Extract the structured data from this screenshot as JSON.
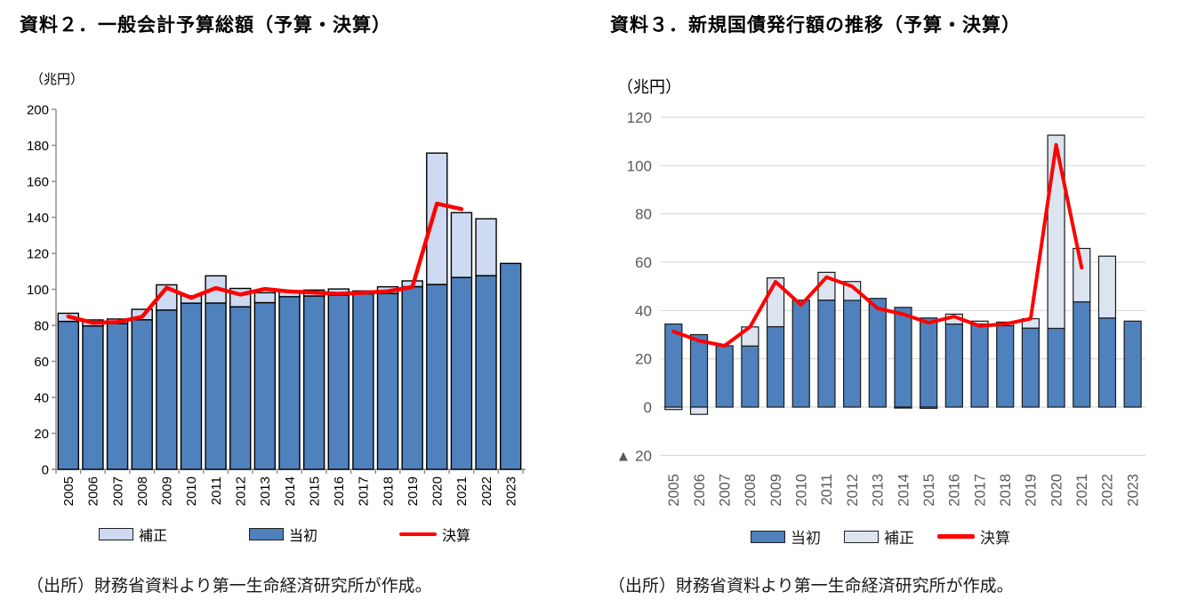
{
  "panels": [
    {
      "title": "資料２．一般会計予算総額（予算・決算）",
      "unit": "（兆円）",
      "source": "（出所）財務省資料より第一生命経済研究所が作成。",
      "legend": [
        {
          "label": "補正",
          "swatch": "light"
        },
        {
          "label": "当初",
          "swatch": "dark"
        },
        {
          "label": "決算",
          "swatch": "line"
        }
      ]
    },
    {
      "title": "資料３．新規国債発行額の推移（予算・決算）",
      "unit": "（兆円）",
      "source": "（出所）財務省資料より第一生命経済研究所が作成。",
      "legend": [
        {
          "label": "当初",
          "swatch": "dark"
        },
        {
          "label": "補正",
          "swatch": "light"
        },
        {
          "label": "決算",
          "swatch": "line"
        }
      ]
    }
  ],
  "colors": {
    "bar_dark": "#4F81BD",
    "bar_light_left": "#CDDAF1",
    "bar_light_right": "#DCE4F0",
    "line_red": "#FF0000",
    "grid": "#D9D9D9",
    "axis_gray": "#8C8C8C",
    "axis_text_left": "#000000",
    "axis_text_right": "#595959"
  },
  "chart_data": [
    {
      "type": "bar",
      "subtype": "stacked-bar-with-line",
      "title": "資料２．一般会計予算総額（予算・決算）",
      "unit": "（兆円）",
      "categories": [
        "2005",
        "2006",
        "2007",
        "2008",
        "2009",
        "2010",
        "2011",
        "2012",
        "2013",
        "2014",
        "2015",
        "2016",
        "2017",
        "2018",
        "2019",
        "2020",
        "2021",
        "2022",
        "2023"
      ],
      "series": [
        {
          "name": "当初",
          "role": "bar-base",
          "values": [
            82.2,
            79.7,
            81.0,
            83.1,
            88.5,
            92.3,
            92.4,
            90.3,
            92.6,
            95.9,
            96.3,
            96.7,
            97.5,
            97.7,
            101.5,
            102.7,
            106.6,
            107.6,
            114.4
          ]
        },
        {
          "name": "補正",
          "role": "bar-stack",
          "values": [
            4.5,
            3.3,
            2.5,
            5.8,
            14.0,
            4.1,
            15.1,
            10.2,
            5.5,
            3.1,
            3.3,
            3.5,
            1.6,
            3.7,
            3.2,
            73.0,
            36.0,
            31.6,
            0
          ]
        },
        {
          "name": "決算",
          "role": "line",
          "values": [
            84.9,
            81.4,
            81.8,
            84.7,
            100.9,
            95.3,
            100.7,
            97.1,
            100.2,
            98.8,
            98.2,
            97.5,
            98.1,
            98.9,
            101.3,
            147.6,
            144.6,
            null,
            null
          ]
        }
      ],
      "ylim": [
        0,
        200
      ],
      "yticks": [
        0,
        20,
        40,
        60,
        80,
        100,
        120,
        140,
        160,
        180,
        200
      ],
      "ytick_labels": [
        "0",
        "20",
        "40",
        "60",
        "80",
        "100",
        "120",
        "140",
        "160",
        "180",
        "200"
      ],
      "grid": false,
      "axis_lines": true,
      "legend_position": "bottom"
    },
    {
      "type": "bar",
      "subtype": "stacked-bar-with-line",
      "title": "資料３．新規国債発行額の推移（予算・決算）",
      "unit": "（兆円）",
      "categories": [
        "2005",
        "2006",
        "2007",
        "2008",
        "2009",
        "2010",
        "2011",
        "2012",
        "2013",
        "2014",
        "2015",
        "2016",
        "2017",
        "2018",
        "2019",
        "2020",
        "2021",
        "2022",
        "2023"
      ],
      "series": [
        {
          "name": "当初",
          "role": "bar-base",
          "values": [
            34.4,
            30.0,
            25.4,
            25.3,
            33.3,
            44.3,
            44.3,
            44.2,
            45.0,
            41.3,
            36.9,
            34.4,
            34.4,
            33.7,
            32.7,
            32.6,
            43.6,
            36.9,
            35.6
          ]
        },
        {
          "name": "補正",
          "role": "bar-stack",
          "values": [
            -1.0,
            -3.0,
            0,
            7.9,
            20.2,
            0,
            11.5,
            7.8,
            0,
            -0.4,
            -0.5,
            4.1,
            1.2,
            1.5,
            3.9,
            80.0,
            22.1,
            25.6,
            0
          ]
        },
        {
          "name": "決算",
          "role": "line",
          "values": [
            31.3,
            27.5,
            25.4,
            33.2,
            51.9,
            42.3,
            53.8,
            50.0,
            40.9,
            38.5,
            34.9,
            37.5,
            33.6,
            34.4,
            36.6,
            108.6,
            57.7,
            null,
            null
          ]
        }
      ],
      "ylim": [
        -20,
        120
      ],
      "yticks": [
        -20,
        0,
        20,
        40,
        60,
        80,
        100,
        120
      ],
      "ytick_labels": [
        "▲ 20",
        "0",
        "20",
        "40",
        "60",
        "80",
        "100",
        "120"
      ],
      "grid": true,
      "axis_lines": false,
      "legend_position": "bottom"
    }
  ]
}
